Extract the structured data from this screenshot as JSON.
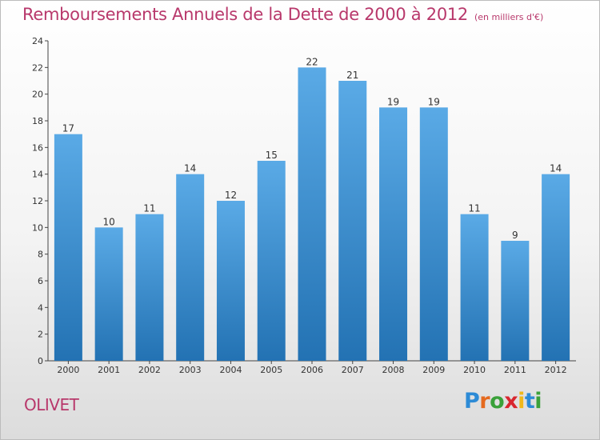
{
  "header": {
    "title": "Remboursements Annuels de la Dette de 2000 à 2012",
    "subtitle": "(en milliers d'€)"
  },
  "footer": {
    "city": "OLIVET",
    "logo": {
      "letters": [
        "P",
        "r",
        "o",
        "x",
        "i",
        "t",
        "i"
      ],
      "colors": [
        "#2d8bd6",
        "#e56a1f",
        "#3aa13a",
        "#d8262f",
        "#f0b81a",
        "#2d8bd6",
        "#3aa13a"
      ]
    }
  },
  "chart_data": {
    "type": "bar",
    "categories": [
      "2000",
      "2001",
      "2002",
      "2003",
      "2004",
      "2005",
      "2006",
      "2007",
      "2008",
      "2009",
      "2010",
      "2011",
      "2012"
    ],
    "values": [
      17,
      10,
      11,
      14,
      12,
      15,
      22,
      21,
      19,
      19,
      11,
      9,
      14
    ],
    "value_labels": [
      "17",
      "10",
      "11",
      "14",
      "12",
      "15",
      "22",
      "21",
      "19",
      "19",
      "11",
      "9",
      "14"
    ],
    "y_ticks": [
      0,
      2,
      4,
      6,
      8,
      10,
      12,
      14,
      16,
      18,
      20,
      22,
      24
    ],
    "ylim": [
      0,
      24
    ],
    "grid": false,
    "bar_color_top": "#5aaae6",
    "bar_color_bottom": "#2372b3"
  }
}
